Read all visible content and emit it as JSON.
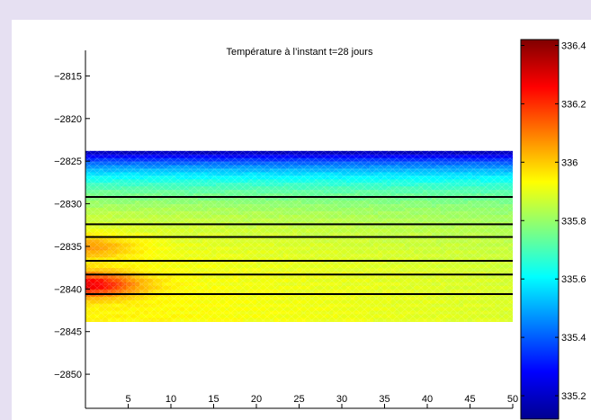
{
  "chart_data": {
    "type": "heatmap",
    "title": "Température à l’instant t=28 jours",
    "xlabel": "",
    "ylabel": "",
    "xlim": [
      0,
      50
    ],
    "ylim": [
      -2854,
      -2812
    ],
    "xticks": [
      5,
      10,
      15,
      20,
      25,
      30,
      35,
      40,
      45,
      50
    ],
    "yticks": [
      -2815,
      -2820,
      -2825,
      -2830,
      -2835,
      -2840,
      -2845,
      -2850
    ],
    "domain": {
      "x": [
        0,
        50
      ],
      "y": [
        -2843.8,
        -2823.8
      ]
    },
    "layer_lines_y": [
      -2829.2,
      -2832.4,
      -2833.9,
      -2836.7,
      -2838.3,
      -2840.6
    ],
    "colorbar": {
      "colormap": "jet",
      "range": [
        335.12,
        336.42
      ],
      "ticks": [
        335.2,
        335.4,
        335.6,
        335.8,
        336,
        336.2,
        336.4
      ]
    },
    "hot_spots": [
      {
        "x": 0,
        "y": -2839.5,
        "value": 336.3
      },
      {
        "x": 0,
        "y": -2835.0,
        "value": 336.1
      }
    ],
    "cold_surface_value": 335.15,
    "far_field_value": 335.95
  }
}
